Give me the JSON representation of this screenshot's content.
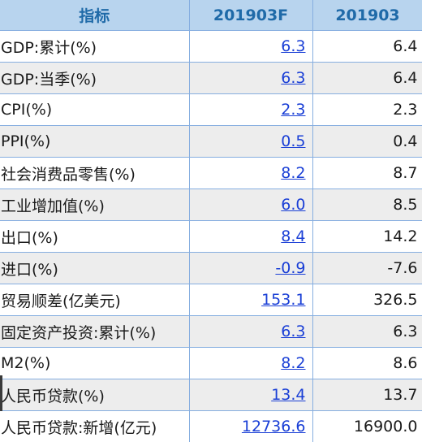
{
  "table": {
    "headers": [
      "指标",
      "201903F",
      "201903"
    ],
    "rows": [
      {
        "name": "GDP:累计(%)",
        "forecast": "6.3",
        "actual": "6.4"
      },
      {
        "name": "GDP:当季(%)",
        "forecast": "6.3",
        "actual": "6.4"
      },
      {
        "name": "CPI(%)",
        "forecast": "2.3",
        "actual": "2.3"
      },
      {
        "name": "PPI(%)",
        "forecast": "0.5",
        "actual": "0.4"
      },
      {
        "name": "社会消费品零售(%)",
        "forecast": "8.2",
        "actual": "8.7"
      },
      {
        "name": "工业增加值(%)",
        "forecast": "6.0",
        "actual": "8.5"
      },
      {
        "name": "出口(%)",
        "forecast": "8.4",
        "actual": "14.2"
      },
      {
        "name": "进口(%)",
        "forecast": "-0.9",
        "actual": "-7.6"
      },
      {
        "name": "贸易顺差(亿美元)",
        "forecast": "153.1",
        "actual": "326.5"
      },
      {
        "name": "固定资产投资:累计(%)",
        "forecast": "6.3",
        "actual": "6.3"
      },
      {
        "name": "M2(%)",
        "forecast": "8.2",
        "actual": "8.6"
      },
      {
        "name": "人民币贷款(%)",
        "forecast": "13.4",
        "actual": "13.7"
      },
      {
        "name": "人民币贷款:新增(亿元)",
        "forecast": "12736.6",
        "actual": "16900.0"
      }
    ]
  },
  "colors": {
    "header_bg": "#b8d4ee",
    "header_text": "#1f6aa8",
    "link": "#1a3fd6",
    "row_alt_bg": "#ededed",
    "grid_line": "#86aee0"
  }
}
